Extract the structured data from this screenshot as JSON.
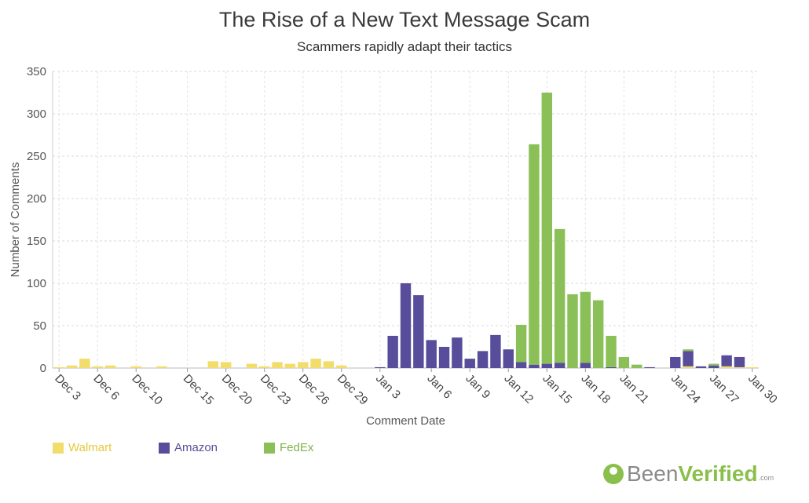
{
  "chart_data": {
    "type": "bar",
    "stacked": true,
    "title": "The Rise of a New Text Message Scam",
    "subtitle": "Scammers rapidly adapt their tactics",
    "xlabel": "Comment Date",
    "ylabel": "Number of Comments",
    "ylim": [
      0,
      350
    ],
    "yticks": [
      0,
      50,
      100,
      150,
      200,
      250,
      300,
      350
    ],
    "grid": true,
    "legend_position": "bottom-left",
    "xtick_labels": [
      "Dec 3",
      "Dec 6",
      "Dec 10",
      "Dec 15",
      "Dec 20",
      "Dec 23",
      "Dec 26",
      "Dec 29",
      "Jan 3",
      "Jan 6",
      "Jan 9",
      "Jan 12",
      "Jan 15",
      "Jan 18",
      "Jan 21",
      "Jan 24",
      "Jan 27",
      "Jan 30"
    ],
    "series": [
      {
        "name": "Walmart",
        "color": "#f2dc6b",
        "values": [
          1,
          3,
          11,
          2,
          3,
          0,
          2,
          0,
          2,
          0,
          0,
          0,
          8,
          7,
          0,
          5,
          2,
          7,
          5,
          7,
          11,
          8,
          3,
          0,
          0,
          0,
          0,
          0,
          0,
          0,
          0,
          0,
          0,
          0,
          0,
          0,
          0,
          0,
          0,
          0,
          0,
          0,
          0,
          0,
          0,
          0,
          0,
          0,
          0,
          2,
          0,
          0,
          2,
          1,
          1
        ]
      },
      {
        "name": "Amazon",
        "color": "#574d9a",
        "values": [
          0,
          0,
          0,
          0,
          0,
          0,
          0,
          0,
          0,
          0,
          0,
          0,
          0,
          0,
          0,
          0,
          0,
          0,
          0,
          0,
          0,
          0,
          0,
          0,
          0,
          1,
          38,
          100,
          86,
          33,
          25,
          36,
          11,
          20,
          39,
          22,
          7,
          4,
          5,
          6,
          0,
          6,
          0,
          1,
          0,
          0,
          1,
          0,
          13,
          18,
          2,
          3,
          13,
          12,
          0
        ]
      },
      {
        "name": "FedEx",
        "color": "#8bbf57",
        "values": [
          0,
          0,
          0,
          0,
          0,
          0,
          0,
          0,
          0,
          0,
          0,
          0,
          0,
          0,
          0,
          0,
          0,
          0,
          0,
          0,
          0,
          0,
          0,
          0,
          0,
          0,
          0,
          0,
          0,
          0,
          0,
          0,
          0,
          0,
          0,
          0,
          44,
          260,
          320,
          158,
          87,
          84,
          80,
          37,
          13,
          4,
          0,
          0,
          0,
          2,
          0,
          2,
          0,
          0,
          0
        ]
      }
    ]
  },
  "legend": [
    {
      "label": "Walmart",
      "color": "#f2dc6b",
      "text_color": "#e6c93c"
    },
    {
      "label": "Amazon",
      "color": "#574d9a",
      "text_color": "#574d9a"
    },
    {
      "label": "FedEx",
      "color": "#8bbf57",
      "text_color": "#7fb347"
    }
  ],
  "logo": {
    "been": "Been",
    "verified": "Verified",
    "com": ".com"
  }
}
